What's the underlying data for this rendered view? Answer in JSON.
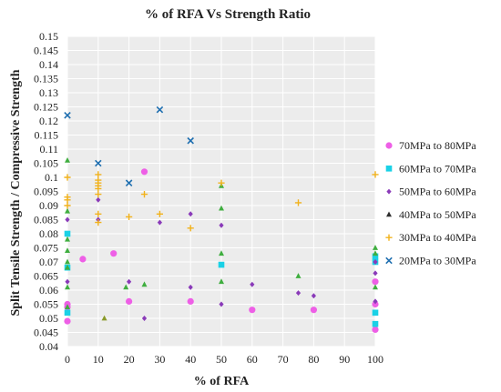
{
  "chart_data": {
    "type": "scatter",
    "title": "% of RFA Vs Strength Ratio",
    "xlabel": "% of RFA",
    "ylabel": "Split Tensile Strength / Compressive Strength",
    "xlim": [
      0,
      100
    ],
    "ylim": [
      0.04,
      0.15
    ],
    "xticks": [
      0,
      10,
      20,
      30,
      40,
      50,
      60,
      70,
      80,
      90,
      100
    ],
    "yticks": [
      0.04,
      0.045,
      0.05,
      0.055,
      0.06,
      0.065,
      0.07,
      0.075,
      0.08,
      0.085,
      0.09,
      0.095,
      0.1,
      0.105,
      0.11,
      0.115,
      0.12,
      0.125,
      0.13,
      0.135,
      0.14,
      0.145,
      0.15
    ],
    "grid": true,
    "legend_position": "right",
    "series": [
      {
        "name": "70MPa to 80MPa",
        "marker": "circle",
        "color": "#ee5fe6",
        "points": [
          [
            0,
            0.049
          ],
          [
            0,
            0.054
          ],
          [
            0,
            0.055
          ],
          [
            5,
            0.071
          ],
          [
            15,
            0.073
          ],
          [
            20,
            0.056
          ],
          [
            25,
            0.102
          ],
          [
            40,
            0.056
          ],
          [
            60,
            0.053
          ],
          [
            80,
            0.053
          ],
          [
            100,
            0.063
          ],
          [
            100,
            0.055
          ],
          [
            100,
            0.046
          ]
        ]
      },
      {
        "name": "60MPa to 70MPa",
        "marker": "square",
        "color": "#1ad1e6",
        "points": [
          [
            0,
            0.08
          ],
          [
            0,
            0.068
          ],
          [
            0,
            0.052
          ],
          [
            50,
            0.069
          ],
          [
            100,
            0.072
          ],
          [
            100,
            0.07
          ],
          [
            100,
            0.052
          ],
          [
            100,
            0.048
          ]
        ]
      },
      {
        "name": "50MPa to 60MPa",
        "marker": "diamond",
        "color": "#8a3ab9",
        "points": [
          [
            0,
            0.085
          ],
          [
            0,
            0.063
          ],
          [
            10,
            0.092
          ],
          [
            10,
            0.085
          ],
          [
            20,
            0.063
          ],
          [
            25,
            0.05
          ],
          [
            30,
            0.084
          ],
          [
            40,
            0.087
          ],
          [
            40,
            0.061
          ],
          [
            50,
            0.083
          ],
          [
            50,
            0.055
          ],
          [
            60,
            0.062
          ],
          [
            75,
            0.059
          ],
          [
            80,
            0.058
          ],
          [
            100,
            0.07
          ],
          [
            100,
            0.066
          ],
          [
            100,
            0.056
          ]
        ]
      },
      {
        "name": "40MPa to 50MPa",
        "marker": "triangle",
        "color": "#2e2e2e",
        "points": [
          [
            0,
            0.106
          ],
          [
            0,
            0.088
          ],
          [
            0,
            0.078
          ],
          [
            0,
            0.074
          ],
          [
            0,
            0.07
          ],
          [
            0,
            0.068
          ],
          [
            0,
            0.061
          ],
          [
            0,
            0.054
          ],
          [
            12,
            0.05
          ],
          [
            19,
            0.061
          ],
          [
            25,
            0.062
          ],
          [
            50,
            0.097
          ],
          [
            50,
            0.089
          ],
          [
            50,
            0.073
          ],
          [
            50,
            0.063
          ],
          [
            75,
            0.065
          ],
          [
            100,
            0.075
          ],
          [
            100,
            0.073
          ],
          [
            100,
            0.061
          ]
        ],
        "point_colors": [
          "#3fae3f",
          "#3fae3f",
          "#3fae3f",
          "#3fae3f",
          "#3fae3f",
          "#3fae3f",
          "#3fae3f",
          "#3fae3f",
          "#8a9a2a",
          "#3fae3f",
          "#3fae3f",
          "#3fae3f",
          "#3fae3f",
          "#3fae3f",
          "#3fae3f",
          "#3fae3f",
          "#3fae3f",
          "#3fae3f",
          "#3fae3f"
        ]
      },
      {
        "name": "30MPa to 40MPa",
        "marker": "plus",
        "color": "#f2b21b",
        "points": [
          [
            0,
            0.1
          ],
          [
            0,
            0.093
          ],
          [
            0,
            0.092
          ],
          [
            0,
            0.09
          ],
          [
            10,
            0.101
          ],
          [
            10,
            0.099
          ],
          [
            10,
            0.098
          ],
          [
            10,
            0.097
          ],
          [
            10,
            0.096
          ],
          [
            10,
            0.094
          ],
          [
            10,
            0.087
          ],
          [
            10,
            0.084
          ],
          [
            20,
            0.086
          ],
          [
            25,
            0.094
          ],
          [
            30,
            0.087
          ],
          [
            40,
            0.082
          ],
          [
            50,
            0.098
          ],
          [
            75,
            0.091
          ],
          [
            100,
            0.101
          ]
        ]
      },
      {
        "name": "20MPa to 30MPa",
        "marker": "cross",
        "color": "#1f6fb0",
        "points": [
          [
            0,
            0.122
          ],
          [
            10,
            0.105
          ],
          [
            20,
            0.098
          ],
          [
            30,
            0.124
          ],
          [
            40,
            0.113
          ]
        ]
      }
    ]
  }
}
